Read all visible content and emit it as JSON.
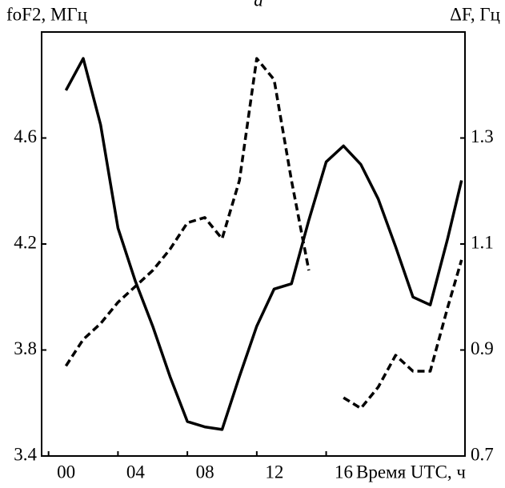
{
  "chart_data": {
    "type": "line",
    "title": "а",
    "y_label": "foF2, МГц",
    "y2_label": "ΔF, Гц",
    "x_label": "Время UTC, ч",
    "x": [
      1,
      2,
      3,
      4,
      5,
      6,
      7,
      8,
      9,
      10,
      11,
      12,
      13,
      14,
      15,
      16,
      17,
      18,
      19,
      20,
      21,
      22,
      23,
      23.8
    ],
    "series": [
      {
        "color": "#000000",
        "style": "solid",
        "axis": "y",
        "values": [
          4.78,
          4.9,
          4.65,
          4.26,
          4.06,
          3.89,
          3.7,
          3.53,
          3.51,
          3.5,
          3.7,
          3.89,
          4.03,
          4.05,
          4.29,
          4.51,
          4.57,
          4.5,
          4.37,
          4.19,
          4.0,
          3.97,
          4.22,
          4.44
        ]
      },
      {
        "color": "#000000",
        "style": "dashed",
        "axis": "y2",
        "values": [
          0.87,
          0.92,
          0.95,
          0.99,
          1.02,
          1.05,
          1.09,
          1.14,
          1.15,
          1.11,
          1.22,
          1.45,
          1.41,
          1.22,
          1.05,
          null,
          0.81,
          0.79,
          0.83,
          0.89,
          0.86,
          0.86,
          0.98,
          1.07
        ]
      }
    ],
    "xlim": [
      -0.4,
      24
    ],
    "xticks": [
      {
        "value": 0,
        "label": "00"
      },
      {
        "value": 4,
        "label": "04"
      },
      {
        "value": 8,
        "label": "08"
      },
      {
        "value": 12,
        "label": "12"
      },
      {
        "value": 16,
        "label": "16"
      }
    ],
    "ylim": [
      3.4,
      5.0
    ],
    "yticks": [
      3.4,
      3.8,
      4.2,
      4.6
    ],
    "y2lim": [
      0.7,
      1.5
    ],
    "y2ticks": [
      0.7,
      0.9,
      1.1,
      1.3
    ]
  }
}
